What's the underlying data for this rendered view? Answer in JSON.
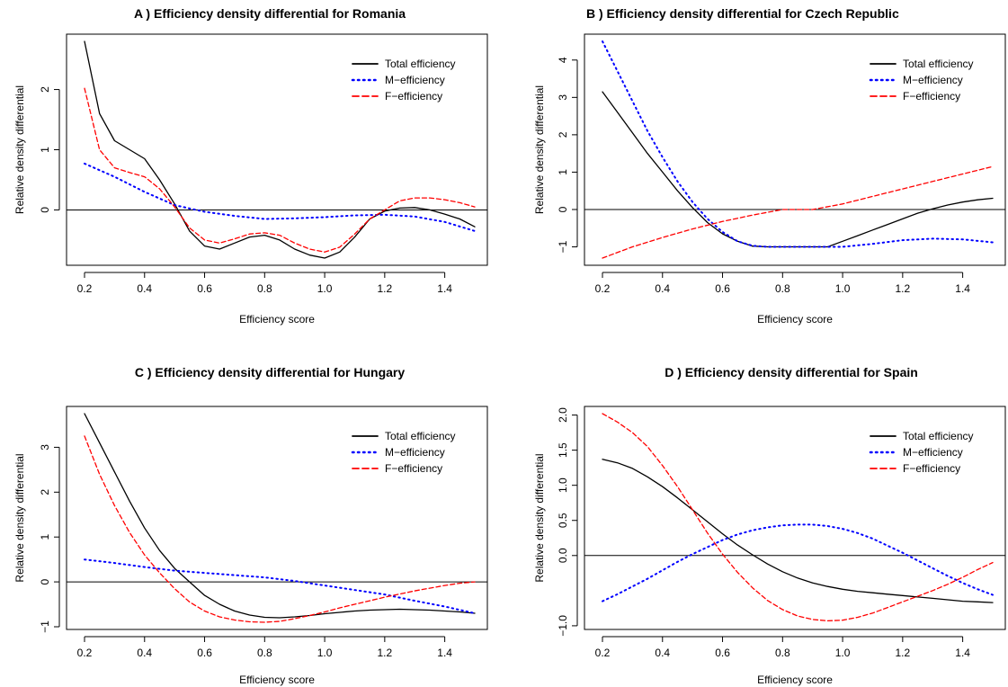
{
  "chart_data": [
    {
      "type": "line",
      "title": "A ) Efficiency density differential for  Romania",
      "xlabel": "Efficiency score",
      "ylabel": "Relative density differential",
      "xlim": [
        0.2,
        1.5
      ],
      "ylim": [
        -0.8,
        2.8
      ],
      "xticks": [
        "0.2",
        "0.4",
        "0.6",
        "0.8",
        "1.0",
        "1.2",
        "1.4"
      ],
      "yticks": [
        "0",
        "1",
        "2"
      ],
      "ytick_values": [
        0,
        1,
        2
      ],
      "reference_line": 0,
      "legend_position": "top-right",
      "series": [
        {
          "name": "Total efficiency",
          "color": "#000000",
          "style": "solid",
          "x": [
            0.2,
            0.25,
            0.3,
            0.35,
            0.4,
            0.45,
            0.5,
            0.55,
            0.6,
            0.65,
            0.7,
            0.75,
            0.8,
            0.85,
            0.9,
            0.95,
            1.0,
            1.05,
            1.1,
            1.15,
            1.2,
            1.25,
            1.3,
            1.35,
            1.4,
            1.45,
            1.5
          ],
          "y": [
            2.8,
            1.6,
            1.15,
            1.0,
            0.85,
            0.5,
            0.1,
            -0.35,
            -0.6,
            -0.65,
            -0.55,
            -0.45,
            -0.42,
            -0.5,
            -0.65,
            -0.75,
            -0.8,
            -0.7,
            -0.45,
            -0.15,
            -0.02,
            0.03,
            0.04,
            0.0,
            -0.07,
            -0.15,
            -0.28
          ]
        },
        {
          "name": "M−efficiency",
          "color": "#0000ff",
          "style": "dotted",
          "x": [
            0.2,
            0.3,
            0.4,
            0.5,
            0.6,
            0.7,
            0.8,
            0.9,
            1.0,
            1.1,
            1.2,
            1.3,
            1.4,
            1.5
          ],
          "y": [
            0.77,
            0.55,
            0.3,
            0.08,
            -0.03,
            -0.1,
            -0.15,
            -0.14,
            -0.12,
            -0.09,
            -0.08,
            -0.11,
            -0.2,
            -0.35
          ]
        },
        {
          "name": "F−efficiency",
          "color": "#ff0000",
          "style": "dashed",
          "x": [
            0.2,
            0.25,
            0.3,
            0.35,
            0.4,
            0.45,
            0.5,
            0.55,
            0.6,
            0.65,
            0.7,
            0.75,
            0.8,
            0.85,
            0.9,
            0.95,
            1.0,
            1.05,
            1.1,
            1.15,
            1.2,
            1.25,
            1.3,
            1.35,
            1.4,
            1.45,
            1.5
          ],
          "y": [
            2.02,
            1.0,
            0.7,
            0.62,
            0.55,
            0.35,
            0.05,
            -0.3,
            -0.5,
            -0.55,
            -0.48,
            -0.4,
            -0.38,
            -0.42,
            -0.55,
            -0.65,
            -0.7,
            -0.62,
            -0.4,
            -0.15,
            0.0,
            0.15,
            0.2,
            0.2,
            0.17,
            0.12,
            0.05
          ]
        }
      ]
    },
    {
      "type": "line",
      "title": "B ) Efficiency density differential for  Czech Republic",
      "xlabel": "Efficiency score",
      "ylabel": "Relative density differential",
      "xlim": [
        0.2,
        1.5
      ],
      "ylim": [
        -1.3,
        4.5
      ],
      "xticks": [
        "0.2",
        "0.4",
        "0.6",
        "0.8",
        "1.0",
        "1.2",
        "1.4"
      ],
      "yticks": [
        "−1",
        "0",
        "1",
        "2",
        "3",
        "4"
      ],
      "ytick_values": [
        -1,
        0,
        1,
        2,
        3,
        4
      ],
      "reference_line": 0,
      "legend_position": "top-right",
      "series": [
        {
          "name": "Total efficiency",
          "color": "#000000",
          "style": "solid",
          "x": [
            0.2,
            0.25,
            0.3,
            0.35,
            0.4,
            0.45,
            0.5,
            0.55,
            0.6,
            0.65,
            0.7,
            0.75,
            0.8,
            0.85,
            0.9,
            0.95,
            1.0,
            1.05,
            1.1,
            1.15,
            1.2,
            1.25,
            1.3,
            1.35,
            1.4,
            1.45,
            1.5
          ],
          "y": [
            3.15,
            2.6,
            2.05,
            1.5,
            1.0,
            0.5,
            0.05,
            -0.35,
            -0.65,
            -0.85,
            -0.98,
            -1.0,
            -1.0,
            -1.0,
            -1.0,
            -1.0,
            -0.85,
            -0.7,
            -0.55,
            -0.4,
            -0.25,
            -0.1,
            0.02,
            0.12,
            0.2,
            0.26,
            0.3
          ]
        },
        {
          "name": "M−efficiency",
          "color": "#0000ff",
          "style": "dotted",
          "x": [
            0.2,
            0.25,
            0.3,
            0.35,
            0.4,
            0.45,
            0.5,
            0.55,
            0.6,
            0.65,
            0.7,
            0.75,
            0.8,
            0.9,
            1.0,
            1.1,
            1.2,
            1.3,
            1.4,
            1.5
          ],
          "y": [
            4.5,
            3.7,
            2.9,
            2.1,
            1.4,
            0.75,
            0.2,
            -0.25,
            -0.6,
            -0.85,
            -0.97,
            -1.0,
            -1.0,
            -1.0,
            -1.0,
            -0.92,
            -0.82,
            -0.78,
            -0.8,
            -0.88
          ]
        },
        {
          "name": "F−efficiency",
          "color": "#ff0000",
          "style": "dashed",
          "x": [
            0.2,
            0.3,
            0.4,
            0.5,
            0.6,
            0.7,
            0.8,
            0.9,
            1.0,
            1.1,
            1.2,
            1.3,
            1.4,
            1.5
          ],
          "y": [
            -1.3,
            -1.0,
            -0.75,
            -0.52,
            -0.32,
            -0.15,
            0.0,
            0.0,
            0.15,
            0.35,
            0.55,
            0.75,
            0.95,
            1.15
          ]
        }
      ]
    },
    {
      "type": "line",
      "title": "C ) Efficiency density differential for  Hungary",
      "xlabel": "Efficiency score",
      "ylabel": "Relative density differential",
      "xlim": [
        0.2,
        1.5
      ],
      "ylim": [
        -0.9,
        3.75
      ],
      "xticks": [
        "0.2",
        "0.4",
        "0.6",
        "0.8",
        "1.0",
        "1.2",
        "1.4"
      ],
      "yticks": [
        "−1",
        "0",
        "1",
        "2",
        "3"
      ],
      "ytick_values": [
        -1,
        0,
        1,
        2,
        3
      ],
      "reference_line": 0,
      "legend_position": "top-right",
      "series": [
        {
          "name": "Total efficiency",
          "color": "#000000",
          "style": "solid",
          "x": [
            0.2,
            0.25,
            0.3,
            0.35,
            0.4,
            0.45,
            0.5,
            0.55,
            0.6,
            0.65,
            0.7,
            0.75,
            0.8,
            0.85,
            0.9,
            0.95,
            1.0,
            1.05,
            1.1,
            1.15,
            1.2,
            1.25,
            1.3,
            1.35,
            1.4,
            1.45,
            1.5
          ],
          "y": [
            3.75,
            3.1,
            2.45,
            1.8,
            1.2,
            0.7,
            0.3,
            0.0,
            -0.3,
            -0.5,
            -0.65,
            -0.74,
            -0.79,
            -0.8,
            -0.78,
            -0.75,
            -0.71,
            -0.68,
            -0.65,
            -0.63,
            -0.62,
            -0.61,
            -0.62,
            -0.63,
            -0.65,
            -0.67,
            -0.7
          ]
        },
        {
          "name": "M−efficiency",
          "color": "#0000ff",
          "style": "dotted",
          "x": [
            0.2,
            0.3,
            0.4,
            0.5,
            0.6,
            0.7,
            0.8,
            0.9,
            1.0,
            1.1,
            1.2,
            1.3,
            1.4,
            1.5
          ],
          "y": [
            0.5,
            0.42,
            0.33,
            0.25,
            0.2,
            0.15,
            0.1,
            0.02,
            -0.08,
            -0.18,
            -0.28,
            -0.42,
            -0.55,
            -0.7
          ]
        },
        {
          "name": "F−efficiency",
          "color": "#ff0000",
          "style": "dashed",
          "x": [
            0.2,
            0.25,
            0.3,
            0.35,
            0.4,
            0.45,
            0.5,
            0.55,
            0.6,
            0.65,
            0.7,
            0.75,
            0.8,
            0.85,
            0.9,
            0.95,
            1.0,
            1.05,
            1.1,
            1.15,
            1.2,
            1.25,
            1.3,
            1.35,
            1.4,
            1.45,
            1.5
          ],
          "y": [
            3.25,
            2.4,
            1.7,
            1.1,
            0.6,
            0.2,
            -0.15,
            -0.45,
            -0.65,
            -0.78,
            -0.85,
            -0.89,
            -0.9,
            -0.88,
            -0.82,
            -0.75,
            -0.67,
            -0.58,
            -0.5,
            -0.42,
            -0.34,
            -0.27,
            -0.2,
            -0.14,
            -0.08,
            -0.03,
            0.0
          ]
        }
      ]
    },
    {
      "type": "line",
      "title": "D ) Efficiency density differential for  Spain",
      "xlabel": "Efficiency score",
      "ylabel": "Relative density differential",
      "xlim": [
        0.2,
        1.5
      ],
      "ylim": [
        -0.95,
        2.02
      ],
      "xticks": [
        "0.2",
        "0.4",
        "0.6",
        "0.8",
        "1.0",
        "1.2",
        "1.4"
      ],
      "yticks": [
        "−1.0",
        "0.0",
        "0.5",
        "1.0",
        "1.5",
        "2.0"
      ],
      "ytick_values": [
        -1.0,
        0.0,
        0.5,
        1.0,
        1.5,
        2.0
      ],
      "reference_line": 0,
      "legend_position": "top-right",
      "series": [
        {
          "name": "Total efficiency",
          "color": "#000000",
          "style": "solid",
          "x": [
            0.2,
            0.25,
            0.3,
            0.35,
            0.4,
            0.45,
            0.5,
            0.55,
            0.6,
            0.65,
            0.7,
            0.75,
            0.8,
            0.85,
            0.9,
            0.95,
            1.0,
            1.05,
            1.1,
            1.15,
            1.2,
            1.25,
            1.3,
            1.35,
            1.4,
            1.45,
            1.5
          ],
          "y": [
            1.37,
            1.32,
            1.24,
            1.12,
            0.98,
            0.82,
            0.65,
            0.48,
            0.31,
            0.15,
            0.01,
            -0.12,
            -0.23,
            -0.32,
            -0.39,
            -0.44,
            -0.48,
            -0.51,
            -0.53,
            -0.55,
            -0.57,
            -0.59,
            -0.61,
            -0.63,
            -0.65,
            -0.66,
            -0.67
          ]
        },
        {
          "name": "M−efficiency",
          "color": "#0000ff",
          "style": "dotted",
          "x": [
            0.2,
            0.25,
            0.3,
            0.35,
            0.4,
            0.45,
            0.5,
            0.55,
            0.6,
            0.65,
            0.7,
            0.75,
            0.8,
            0.85,
            0.9,
            0.95,
            1.0,
            1.05,
            1.1,
            1.15,
            1.2,
            1.25,
            1.3,
            1.35,
            1.4,
            1.45,
            1.5
          ],
          "y": [
            -0.65,
            -0.55,
            -0.44,
            -0.33,
            -0.21,
            -0.09,
            0.02,
            0.12,
            0.22,
            0.3,
            0.36,
            0.4,
            0.43,
            0.44,
            0.44,
            0.42,
            0.38,
            0.32,
            0.24,
            0.14,
            0.04,
            -0.07,
            -0.18,
            -0.29,
            -0.39,
            -0.48,
            -0.56
          ]
        },
        {
          "name": "F−efficiency",
          "color": "#ff0000",
          "style": "dashed",
          "x": [
            0.2,
            0.25,
            0.3,
            0.35,
            0.4,
            0.45,
            0.5,
            0.55,
            0.6,
            0.65,
            0.7,
            0.75,
            0.8,
            0.85,
            0.9,
            0.95,
            1.0,
            1.05,
            1.1,
            1.15,
            1.2,
            1.25,
            1.3,
            1.35,
            1.4,
            1.45,
            1.5
          ],
          "y": [
            2.02,
            1.9,
            1.75,
            1.55,
            1.28,
            0.98,
            0.65,
            0.32,
            0.02,
            -0.24,
            -0.46,
            -0.64,
            -0.77,
            -0.86,
            -0.91,
            -0.93,
            -0.92,
            -0.88,
            -0.82,
            -0.74,
            -0.66,
            -0.58,
            -0.5,
            -0.41,
            -0.31,
            -0.2,
            -0.1
          ]
        }
      ]
    }
  ]
}
